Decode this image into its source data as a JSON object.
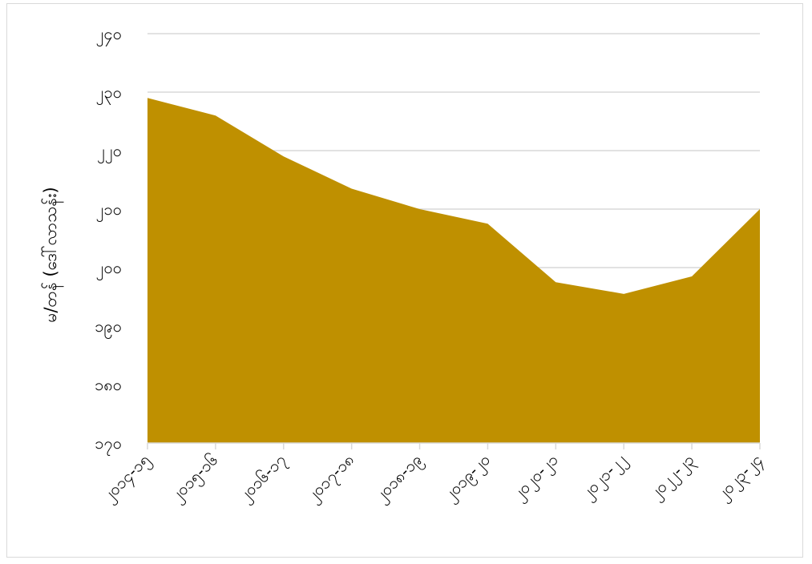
{
  "chart_data": {
    "type": "area",
    "ylabel": "မ/တန် (ဒေါ်လာသန်း)",
    "xlabel": "",
    "title": "",
    "categories": [
      "၂၀၁၄-၁၅",
      "၂၀၁၅-၁၆",
      "၂၀၁၆-၁၇",
      "၂၀၁၇-၁၈",
      "၂၀၁၈-၁၉",
      "၂၀၁၉-၂၀",
      "၂၀၂၀-၂၁",
      "၂၀၂၁-၂၂",
      "၂၀၂၂-၂၃",
      "၂၀၂၃-၂၄"
    ],
    "y_tick_labels": [
      "၁၇၀",
      "၁၈၀",
      "၁၉၀",
      "၂၀၀",
      "၂၁၀",
      "၂၂၀",
      "၂၃၀",
      "၂၄၀"
    ],
    "ylim": [
      170,
      240
    ],
    "yticks": [
      170,
      180,
      190,
      200,
      210,
      220,
      230,
      240
    ],
    "values": [
      229,
      226,
      219,
      213.5,
      210,
      207.5,
      197.5,
      195.5,
      198.5,
      210
    ],
    "grid": true,
    "legend": "none",
    "fill_color": "#BF9000",
    "grid_color": "#d9d9d9",
    "axis_color": "#d9d9d9"
  }
}
